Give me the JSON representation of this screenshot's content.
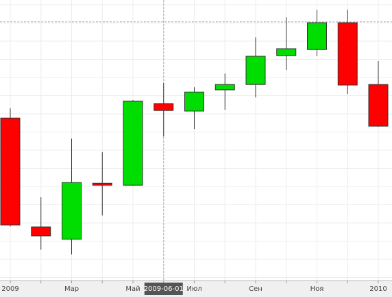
{
  "chart_data": {
    "type": "candlestick",
    "categories": [
      "2009",
      null,
      "Мар",
      null,
      "Май",
      null,
      "Июл",
      null,
      "Сен",
      null,
      "Ноя",
      null,
      "2010"
    ],
    "open": [
      57.8,
      18.9,
      14.5,
      34.5,
      33.8,
      63.0,
      60.3,
      67.9,
      69.8,
      80.1,
      82.3,
      91.9,
      69.8
    ],
    "high": [
      61.3,
      29.6,
      50.5,
      45.6,
      64.2,
      70.3,
      68.8,
      73.7,
      86.7,
      93.8,
      96.5,
      96.5,
      78.2
    ],
    "low": [
      19.1,
      10.8,
      9.1,
      23.0,
      33.6,
      51.2,
      53.9,
      60.8,
      65.2,
      75.0,
      79.9,
      66.4,
      54.7
    ],
    "close": [
      19.6,
      15.7,
      34.8,
      33.8,
      63.9,
      60.5,
      67.1,
      69.8,
      79.9,
      82.6,
      91.9,
      69.6,
      54.9
    ],
    "up_color": "#00dd00",
    "down_color": "#ff0000",
    "ylim": [
      0,
      100
    ],
    "crosshair": {
      "index": 5,
      "label": "2009-06-01",
      "value": 92.2
    }
  }
}
